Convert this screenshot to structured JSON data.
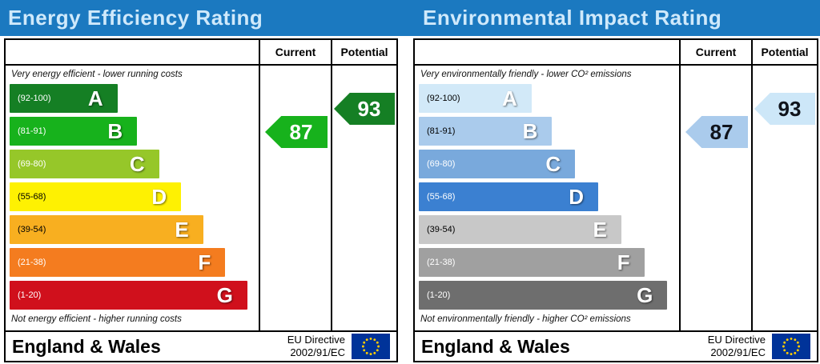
{
  "colors": {
    "header_bg": "#1b79c0",
    "header_text": "#cfe9fb",
    "table_border": "#000000",
    "eu_flag_bg": "#003399",
    "eu_flag_star": "#ffcc00"
  },
  "panels": [
    {
      "title": "Energy Efficiency Rating",
      "columns": {
        "current": "Current",
        "potential": "Potential"
      },
      "top_note": "Very energy efficient - lower running costs",
      "bottom_note": "Not energy efficient - higher running costs",
      "bands": [
        {
          "letter": "A",
          "range": "(92-100)",
          "color": "#157f24",
          "width_pct": 44,
          "range_text_color": "#ffffff"
        },
        {
          "letter": "B",
          "range": "(81-91)",
          "color": "#17b21c",
          "width_pct": 52,
          "range_text_color": "#ffffff"
        },
        {
          "letter": "C",
          "range": "(69-80)",
          "color": "#96c729",
          "width_pct": 61,
          "range_text_color": "#ffffff"
        },
        {
          "letter": "D",
          "range": "(55-68)",
          "color": "#fef102",
          "width_pct": 70,
          "range_text_color": "#000000"
        },
        {
          "letter": "E",
          "range": "(39-54)",
          "color": "#f8af20",
          "width_pct": 79,
          "range_text_color": "#000000"
        },
        {
          "letter": "F",
          "range": "(21-38)",
          "color": "#f47c1f",
          "width_pct": 88,
          "range_text_color": "#ffffff"
        },
        {
          "letter": "G",
          "range": "(1-20)",
          "color": "#d0101c",
          "width_pct": 97,
          "range_text_color": "#ffffff"
        }
      ],
      "current": {
        "value": "87",
        "band": "B",
        "arrow_color": "#17b21c",
        "text_color": "#ffffff"
      },
      "potential": {
        "value": "93",
        "band": "A",
        "arrow_color": "#157f24",
        "text_color": "#ffffff"
      },
      "footer": {
        "region": "England & Wales",
        "directive_line1": "EU Directive",
        "directive_line2": "2002/91/EC"
      }
    },
    {
      "title": "Environmental Impact Rating",
      "columns": {
        "current": "Current",
        "potential": "Potential"
      },
      "top_note": "Very environmentally friendly - lower CO² emissions",
      "bottom_note": "Not environmentally friendly - higher CO² emissions",
      "bands": [
        {
          "letter": "A",
          "range": "(92-100)",
          "color": "#d2e9f8",
          "width_pct": 44,
          "range_text_color": "#000000"
        },
        {
          "letter": "B",
          "range": "(81-91)",
          "color": "#aacbec",
          "width_pct": 52,
          "range_text_color": "#000000"
        },
        {
          "letter": "C",
          "range": "(69-80)",
          "color": "#79a9dc",
          "width_pct": 61,
          "range_text_color": "#ffffff"
        },
        {
          "letter": "D",
          "range": "(55-68)",
          "color": "#3b80d1",
          "width_pct": 70,
          "range_text_color": "#ffffff"
        },
        {
          "letter": "E",
          "range": "(39-54)",
          "color": "#c8c8c8",
          "width_pct": 79,
          "range_text_color": "#000000"
        },
        {
          "letter": "F",
          "range": "(21-38)",
          "color": "#a0a0a0",
          "width_pct": 88,
          "range_text_color": "#ffffff"
        },
        {
          "letter": "G",
          "range": "(1-20)",
          "color": "#6e6e6e",
          "width_pct": 97,
          "range_text_color": "#ffffff"
        }
      ],
      "current": {
        "value": "87",
        "band": "B",
        "arrow_color": "#aacbec",
        "text_color": "#10141c"
      },
      "potential": {
        "value": "93",
        "band": "A",
        "arrow_color": "#cde7f8",
        "text_color": "#10141c"
      },
      "footer": {
        "region": "England & Wales",
        "directive_line1": "EU Directive",
        "directive_line2": "2002/91/EC"
      }
    }
  ],
  "chart_data": [
    {
      "type": "bar",
      "title": "Energy Efficiency Rating",
      "bands": [
        {
          "letter": "A",
          "range": [
            92,
            100
          ]
        },
        {
          "letter": "B",
          "range": [
            81,
            91
          ]
        },
        {
          "letter": "C",
          "range": [
            69,
            80
          ]
        },
        {
          "letter": "D",
          "range": [
            55,
            68
          ]
        },
        {
          "letter": "E",
          "range": [
            39,
            54
          ]
        },
        {
          "letter": "F",
          "range": [
            21,
            38
          ]
        },
        {
          "letter": "G",
          "range": [
            1,
            20
          ]
        }
      ],
      "current": 87,
      "potential": 93,
      "current_band": "B",
      "potential_band": "A"
    },
    {
      "type": "bar",
      "title": "Environmental Impact Rating",
      "bands": [
        {
          "letter": "A",
          "range": [
            92,
            100
          ]
        },
        {
          "letter": "B",
          "range": [
            81,
            91
          ]
        },
        {
          "letter": "C",
          "range": [
            69,
            80
          ]
        },
        {
          "letter": "D",
          "range": [
            55,
            68
          ]
        },
        {
          "letter": "E",
          "range": [
            39,
            54
          ]
        },
        {
          "letter": "F",
          "range": [
            21,
            38
          ]
        },
        {
          "letter": "G",
          "range": [
            1,
            20
          ]
        }
      ],
      "current": 87,
      "potential": 93,
      "current_band": "B",
      "potential_band": "A"
    }
  ]
}
